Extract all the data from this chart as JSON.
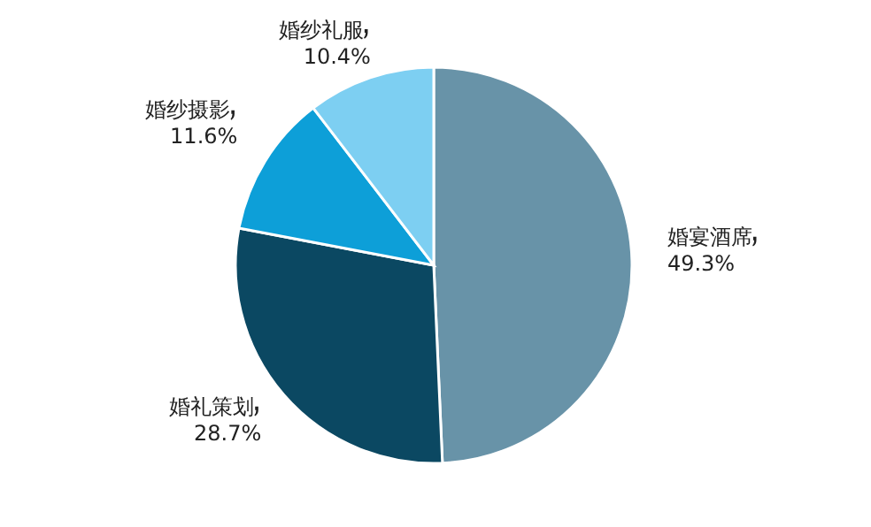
{
  "chart_data": {
    "type": "pie",
    "categories": [
      "婚宴酒席",
      "婚礼策划",
      "婚纱摄影",
      "婚纱礼服"
    ],
    "values": [
      49.3,
      28.7,
      11.6,
      10.4
    ],
    "value_labels": [
      "49.3%",
      "28.7%",
      "11.6%",
      "10.4%"
    ],
    "colors": [
      "#6893a8",
      "#0b4862",
      "#0d9fd8",
      "#7dcff2"
    ],
    "legend": false
  }
}
